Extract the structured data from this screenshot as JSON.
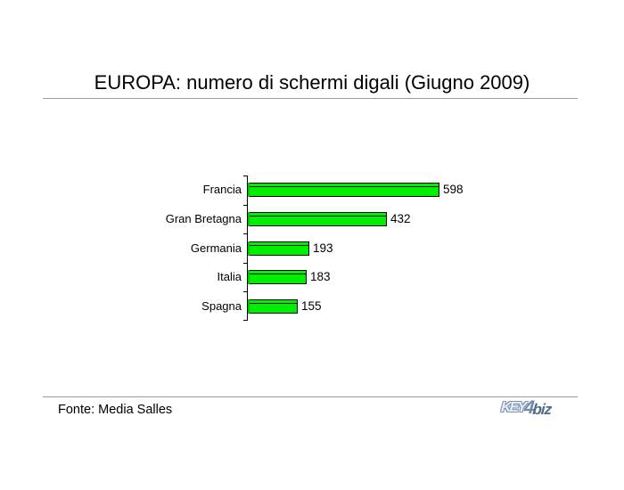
{
  "title": "EUROPA: numero di schermi digali (Giugno 2009)",
  "footer": {
    "source_label": "Fonte: Media Salles"
  },
  "logo": {
    "part1": "KEY",
    "part2": "4",
    "part3": "biz"
  },
  "chart_data": {
    "type": "bar",
    "orientation": "horizontal",
    "title": "EUROPA: numero di schermi digali (Giugno 2009)",
    "categories": [
      "Francia",
      "Gran Bretagna",
      "Germania",
      "Italia",
      "Spagna"
    ],
    "values": [
      598,
      432,
      193,
      183,
      155
    ],
    "xlabel": "",
    "ylabel": "",
    "xlim": [
      0,
      600
    ],
    "grid": false,
    "legend": false,
    "value_labels_shown": true,
    "bar_color": "#00ee00",
    "bar_border_color": "#000000",
    "source": "Fonte: Media Salles"
  }
}
